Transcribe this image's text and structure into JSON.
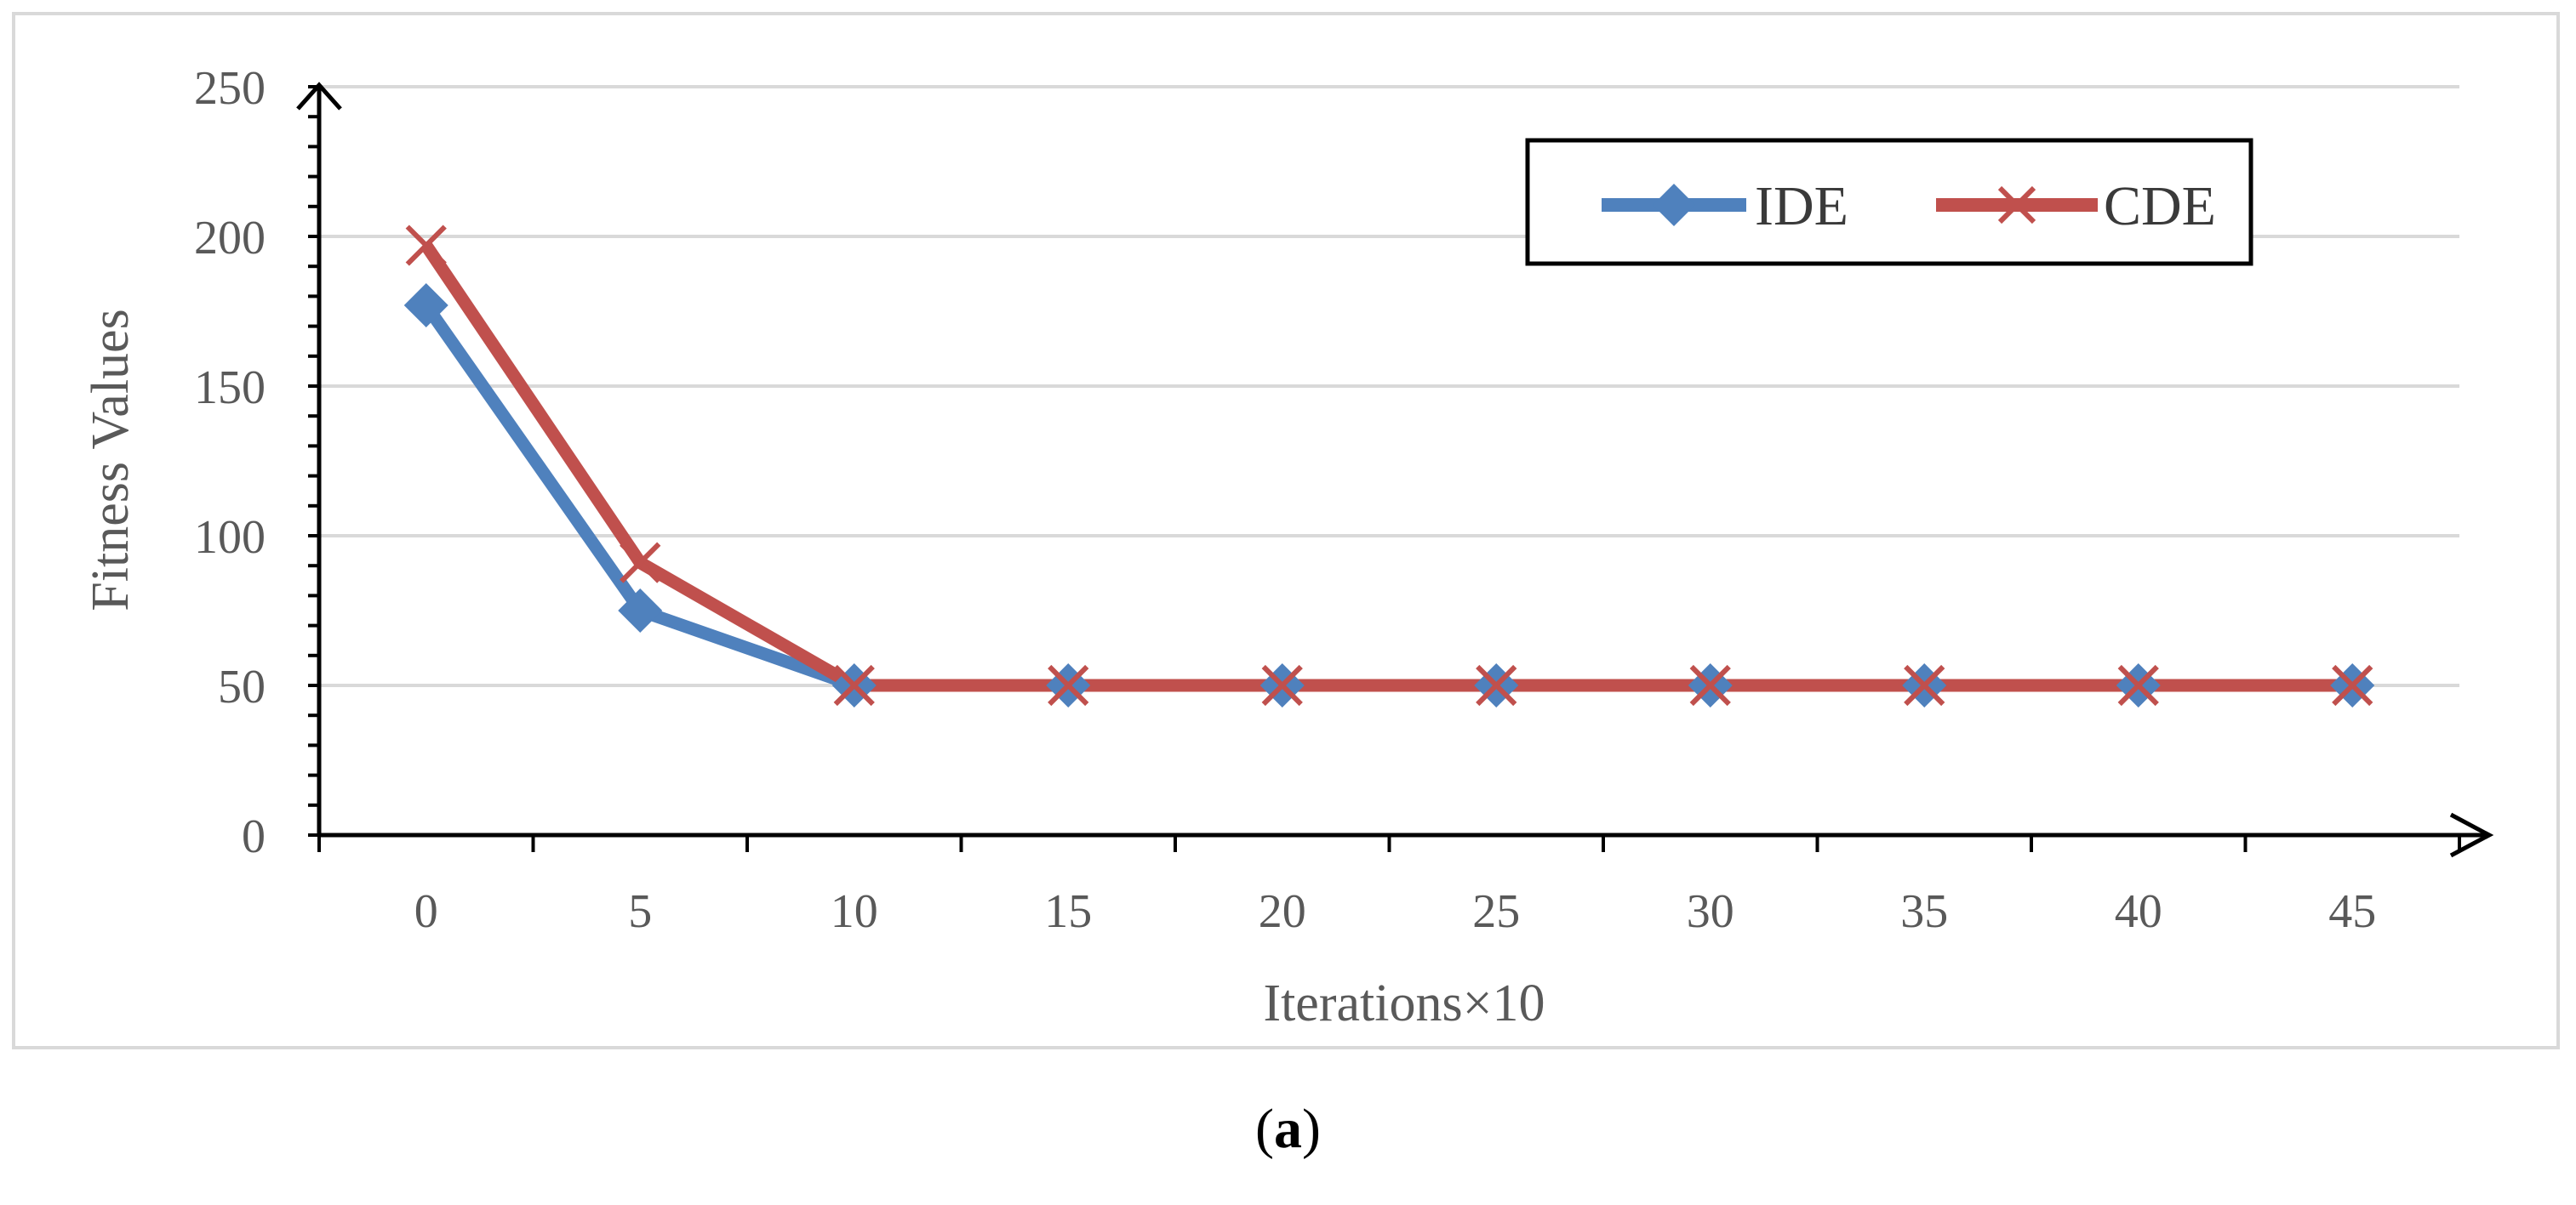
{
  "chart_data": {
    "type": "line",
    "categories": [
      "0",
      "5",
      "10",
      "15",
      "20",
      "25",
      "30",
      "35",
      "40",
      "45"
    ],
    "series": [
      {
        "name": "IDE",
        "color": "#4F81BD",
        "marker": "diamond",
        "values": [
          177,
          75,
          50,
          50,
          50,
          50,
          50,
          50,
          50,
          50
        ]
      },
      {
        "name": "CDE",
        "color": "#C0504D",
        "marker": "x",
        "values": [
          197,
          91,
          50,
          50,
          50,
          50,
          50,
          50,
          50,
          50
        ]
      }
    ],
    "title": "",
    "xlabel": "Iterations×10",
    "ylabel": "Fitness Values",
    "ylim": [
      0,
      250
    ],
    "yticks": [
      0,
      50,
      100,
      150,
      200,
      250
    ],
    "grid": true,
    "legend": "top-right"
  },
  "caption": {
    "letter": "a"
  },
  "colors": {
    "grid": "#d9d9d9",
    "axis": "#000000",
    "text": "#595959"
  }
}
